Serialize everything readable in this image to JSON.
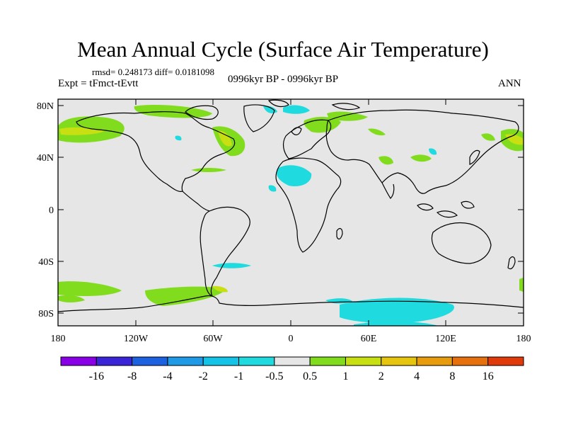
{
  "title": "Mean Annual Cycle (Surface Air Temperature)",
  "stats_text": "rmsd= 0.248173 diff= 0.0181098",
  "experiment_text": "Expt = tFmct-tEvtt",
  "period_text": "0996kyr BP - 0996kyr BP",
  "season_text": "ANN",
  "latitude_labels": [
    "80N",
    "40N",
    "0",
    "40S",
    "80S"
  ],
  "longitude_labels": [
    "180",
    "120W",
    "60W",
    "0",
    "60E",
    "120E",
    "180"
  ],
  "colorbar": {
    "colors": [
      "#8a00e6",
      "#3a24d8",
      "#1c61e0",
      "#1f9ae6",
      "#15c3e6",
      "#1fdbe0",
      "#e6e6e6",
      "#82dc1e",
      "#c8df12",
      "#e6c50f",
      "#e69c0c",
      "#e6700c",
      "#e03a0a"
    ],
    "labels": [
      "-16",
      "-8",
      "-4",
      "-2",
      "-1",
      "-0.5",
      "0.5",
      "1",
      "2",
      "4",
      "8",
      "16"
    ]
  }
}
